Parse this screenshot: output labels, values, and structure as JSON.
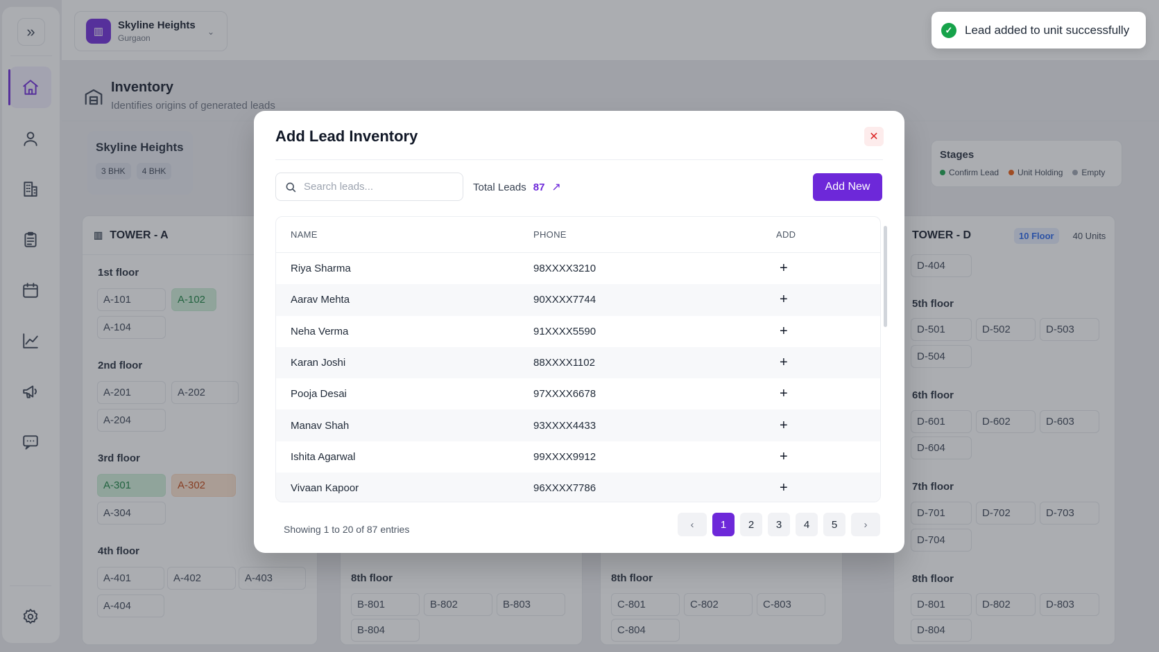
{
  "project": {
    "name": "Skyline Heights",
    "city": "Gurgaon"
  },
  "toast": {
    "message": "Lead added to unit successfully"
  },
  "page": {
    "title": "Inventory",
    "subtitle": "Identifies origins of generated leads"
  },
  "project_card": {
    "title": "Skyline Heights",
    "chips": [
      "3 BHK",
      "4 BHK"
    ]
  },
  "stages": {
    "title": "Stages",
    "items": [
      {
        "label": "Confirm Lead",
        "color": "#16a34a"
      },
      {
        "label": "Unit Holding",
        "color": "#ea580c"
      },
      {
        "label": "Empty",
        "color": "#9ca3af"
      }
    ]
  },
  "towers": {
    "a": {
      "name": "TOWER - A",
      "floors": [
        "1st floor",
        "2nd floor",
        "3rd floor",
        "4th floor"
      ],
      "units": [
        "A-101",
        "A-102",
        "A-104",
        "A-201",
        "A-202",
        "A-204",
        "A-301",
        "A-302",
        "A-304",
        "A-401",
        "A-402",
        "A-403",
        "A-404"
      ]
    },
    "b": {
      "floor": "8th floor",
      "units": [
        "B-801",
        "B-802",
        "B-803",
        "B-804"
      ]
    },
    "c": {
      "floor": "8th floor",
      "units": [
        "C-801",
        "C-802",
        "C-803",
        "C-804"
      ]
    },
    "d": {
      "name": "TOWER - D",
      "badge": "10 Floor",
      "units_count": "40 Units",
      "floors": [
        "5th floor",
        "6th floor",
        "7th floor",
        "8th floor"
      ],
      "units": [
        "D-404",
        "D-501",
        "D-502",
        "D-503",
        "D-504",
        "D-601",
        "D-602",
        "D-603",
        "D-604",
        "D-701",
        "D-702",
        "D-703",
        "D-704",
        "D-801",
        "D-802",
        "D-803",
        "D-804"
      ]
    }
  },
  "modal": {
    "title": "Add Lead Inventory",
    "search_placeholder": "Search leads...",
    "total_label": "Total Leads",
    "total_value": "87",
    "add_new_label": "Add New",
    "columns": [
      "NAME",
      "PHONE",
      "ADD"
    ],
    "rows": [
      {
        "name": "Riya Sharma",
        "phone": "98XXXX3210"
      },
      {
        "name": "Aarav Mehta",
        "phone": "90XXXX7744"
      },
      {
        "name": "Neha Verma",
        "phone": "91XXXX5590"
      },
      {
        "name": "Karan Joshi",
        "phone": "88XXXX1102"
      },
      {
        "name": "Pooja Desai",
        "phone": "97XXXX6678"
      },
      {
        "name": "Manav Shah",
        "phone": "93XXXX4433"
      },
      {
        "name": "Ishita Agarwal",
        "phone": "99XXXX9912"
      },
      {
        "name": "Vivaan Kapoor",
        "phone": "96XXXX7786"
      }
    ],
    "showing": "Showing 1 to 20 of 87 entries",
    "pages": [
      "1",
      "2",
      "3",
      "4",
      "5"
    ],
    "current_page": "1"
  },
  "colors": {
    "accent": "#6d28d9"
  }
}
